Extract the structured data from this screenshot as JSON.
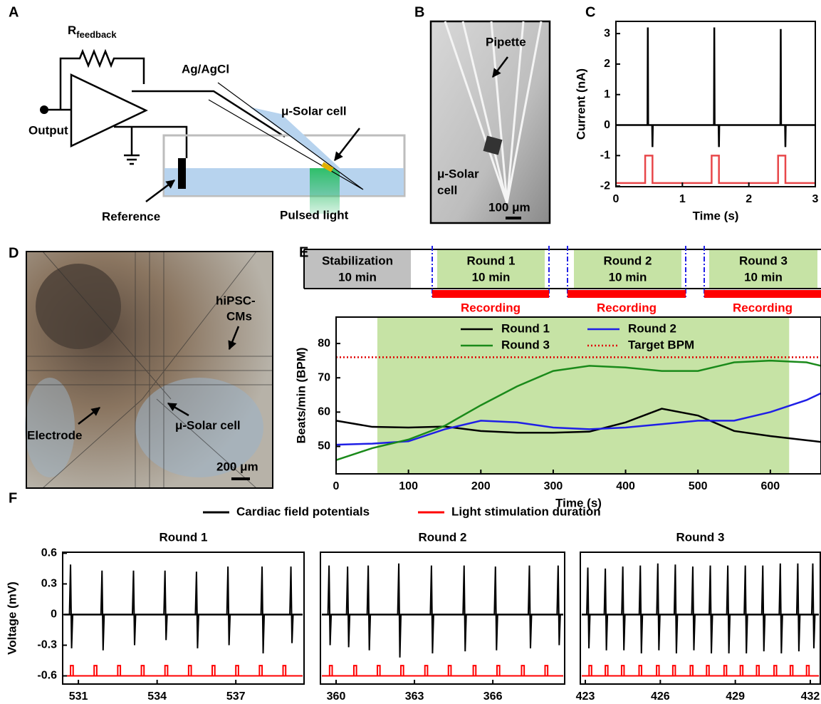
{
  "diagram_A": {
    "panel": "A",
    "r": "R",
    "r_sub": "feedback",
    "electrode": "Ag/AgCl",
    "cell": "μ-Solar cell",
    "output": "Output",
    "reference": "Reference",
    "light": "Pulsed light"
  },
  "image_B": {
    "panel": "B",
    "pipette": "Pipette",
    "cell": [
      "μ-Solar",
      "cell"
    ],
    "scale": "100 μm"
  },
  "image_D": {
    "panel": "D",
    "cells": [
      "hiPSC-",
      "CMs"
    ],
    "electrode": "Electrode",
    "cell": "μ-Solar cell",
    "scale": "200 μm"
  },
  "chart_data": [
    {
      "type": "line",
      "panel": "C",
      "xlabel": "Time (s)",
      "ylabel": "Current (nA)",
      "xlim": [
        0,
        3
      ],
      "xticks": [
        0,
        1,
        2,
        3
      ],
      "ylim": [
        -2.02,
        3.4
      ],
      "yticks": [
        -2,
        -1,
        0,
        1,
        2,
        3
      ],
      "series": [
        {
          "color": "#000000",
          "x": [
            0,
            0.475,
            0.48,
            0.485,
            0.545,
            0.55,
            0.555,
            1.475,
            1.48,
            1.485,
            1.545,
            1.55,
            1.555,
            2.475,
            2.48,
            2.485,
            2.545,
            2.55,
            2.555,
            3
          ],
          "values": [
            0,
            0,
            3.2,
            0,
            0,
            -0.72,
            0,
            0,
            3.2,
            0,
            0,
            -0.72,
            0,
            0,
            3.15,
            0,
            0,
            -0.72,
            0,
            0
          ]
        },
        {
          "color": "#e8474a",
          "x": [
            0,
            0.44,
            0.44,
            0.55,
            0.55,
            1.44,
            1.44,
            1.55,
            1.55,
            2.44,
            2.44,
            2.55,
            2.55,
            3
          ],
          "values": [
            -1.9,
            -1.9,
            -1,
            -1,
            -1.9,
            -1.9,
            -1,
            -1,
            -1.9,
            -1.9,
            -1,
            -1,
            -1.9,
            -1.9
          ]
        }
      ]
    },
    {
      "type": "line",
      "panel": "E",
      "xlabel": "Time (s)",
      "ylabel": "Beats/min (BPM)",
      "xlim": [
        0,
        670
      ],
      "xticks": [
        0,
        100,
        200,
        300,
        400,
        500,
        600
      ],
      "ylim": [
        42,
        87.7
      ],
      "yticks": [
        50,
        60,
        70,
        80
      ],
      "shaded_span": [
        57,
        626
      ],
      "shade_color": "#c6e3a5",
      "timeline": {
        "phases": [
          {
            "name": "Stabilization",
            "duration": "10 min",
            "color": "#c0c0c0"
          },
          {
            "name": "Round 1",
            "duration": "10 min",
            "color": "#c6e3a5"
          },
          {
            "name": "Round 2",
            "duration": "10 min",
            "color": "#c6e3a5"
          },
          {
            "name": "Round 3",
            "duration": "10 min",
            "color": "#c6e3a5"
          }
        ],
        "recording": [
          "Recording",
          "Recording",
          "Recording"
        ],
        "recording_color": "#ff0000"
      },
      "x": [
        0,
        50,
        100,
        150,
        200,
        250,
        300,
        350,
        400,
        450,
        500,
        550,
        600,
        650,
        670
      ],
      "series": [
        {
          "name": "Round 1",
          "color": "#000000",
          "values": [
            57.5,
            55.7,
            55.5,
            55.8,
            54.5,
            54,
            54,
            54.3,
            57,
            61,
            59,
            54.5,
            53,
            51.8,
            51.3
          ]
        },
        {
          "name": "Round 2",
          "color": "#1f1fe6",
          "values": [
            50.5,
            50.8,
            51.5,
            55,
            57.5,
            57,
            55.5,
            55,
            55.5,
            56.5,
            57.5,
            57.5,
            60,
            63.5,
            65.5
          ]
        },
        {
          "name": "Round 3",
          "color": "#1a8a1a",
          "values": [
            46,
            49.5,
            52,
            56,
            62,
            67.5,
            72,
            73.5,
            73,
            72,
            72,
            74.5,
            75,
            74.5,
            73.5
          ]
        },
        {
          "name": "Target BPM",
          "color": "#e00000",
          "dash": "dotted",
          "values": [
            76,
            76,
            76,
            76,
            76,
            76,
            76,
            76,
            76,
            76,
            76,
            76,
            76,
            76,
            76
          ]
        }
      ]
    },
    {
      "type": "spikes",
      "panel": "F",
      "title": "Round 1",
      "ylabel": "Voltage (mV)",
      "legend": [
        {
          "name": "Cardiac field potentials",
          "color": "#000000"
        },
        {
          "name": "Light stimulation duration",
          "color": "#ff0000"
        }
      ],
      "xlim": [
        530.4,
        539.6
      ],
      "xticks": [
        531,
        534,
        537
      ],
      "ylim": [
        -0.68,
        0.61
      ],
      "yticks": [
        -0.6,
        -0.3,
        0,
        0.3,
        0.6
      ],
      "beats": [
        530.7,
        531.9,
        533.1,
        534.3,
        535.5,
        536.7,
        538.0,
        539.1
      ],
      "peaks": [
        0.49,
        0.43,
        0.43,
        0.43,
        0.42,
        0.47,
        0.47,
        0.47
      ],
      "troughs": [
        -0.33,
        -0.35,
        -0.3,
        -0.25,
        -0.33,
        -0.3,
        -0.38,
        -0.28
      ],
      "beat_color": "#000000",
      "stim_onsets": [
        530.7,
        531.6,
        532.5,
        533.4,
        534.3,
        535.2,
        536.1,
        537.0,
        537.9,
        538.8
      ],
      "stim_width": 0.1,
      "stim_levels": [
        -0.6,
        -0.5
      ],
      "stim_color": "#ff0000"
    },
    {
      "type": "spikes",
      "title": "Round 2",
      "xlim": [
        359.4,
        368.75
      ],
      "xticks": [
        360,
        363,
        366
      ],
      "ylim": [
        -0.68,
        0.61
      ],
      "beats": [
        359.73,
        360.44,
        361.23,
        362.4,
        363.65,
        364.9,
        366.1,
        367.4,
        368.5
      ],
      "peaks": [
        0.48,
        0.47,
        0.48,
        0.5,
        0.48,
        0.48,
        0.47,
        0.48,
        0.48
      ],
      "troughs": [
        -0.3,
        -0.32,
        -0.35,
        -0.42,
        -0.38,
        -0.36,
        -0.35,
        -0.33,
        -0.3
      ],
      "beat_color": "#000000",
      "stim_onsets": [
        359.75,
        360.68,
        361.58,
        362.48,
        363.4,
        364.3,
        365.25,
        366.16,
        367.1,
        368.0
      ],
      "stim_width": 0.1,
      "stim_levels": [
        -0.6,
        -0.5
      ],
      "stim_color": "#ff0000"
    },
    {
      "type": "spikes",
      "title": "Round 3",
      "xlim": [
        422.8,
        432.4
      ],
      "xticks": [
        423,
        426,
        429,
        432
      ],
      "ylim": [
        -0.68,
        0.61
      ],
      "beats": [
        423.1,
        423.8,
        424.5,
        425.2,
        425.9,
        426.6,
        427.3,
        428.0,
        428.7,
        429.4,
        430.1,
        430.8,
        431.5,
        432.1
      ],
      "peaks": [
        0.46,
        0.45,
        0.47,
        0.48,
        0.5,
        0.49,
        0.47,
        0.48,
        0.48,
        0.48,
        0.48,
        0.5,
        0.5,
        0.5
      ],
      "troughs": [
        -0.33,
        -0.35,
        -0.35,
        -0.38,
        -0.35,
        -0.38,
        -0.35,
        -0.38,
        -0.38,
        -0.38,
        -0.36,
        -0.38,
        -0.36,
        -0.33
      ],
      "beat_color": "#000000",
      "stim_onsets": [
        423.15,
        423.8,
        424.45,
        425.15,
        425.85,
        426.5,
        427.2,
        427.85,
        428.55,
        429.2,
        429.85,
        430.55,
        431.2,
        431.85
      ],
      "stim_width": 0.1,
      "stim_levels": [
        -0.6,
        -0.5
      ],
      "stim_color": "#ff0000"
    }
  ]
}
